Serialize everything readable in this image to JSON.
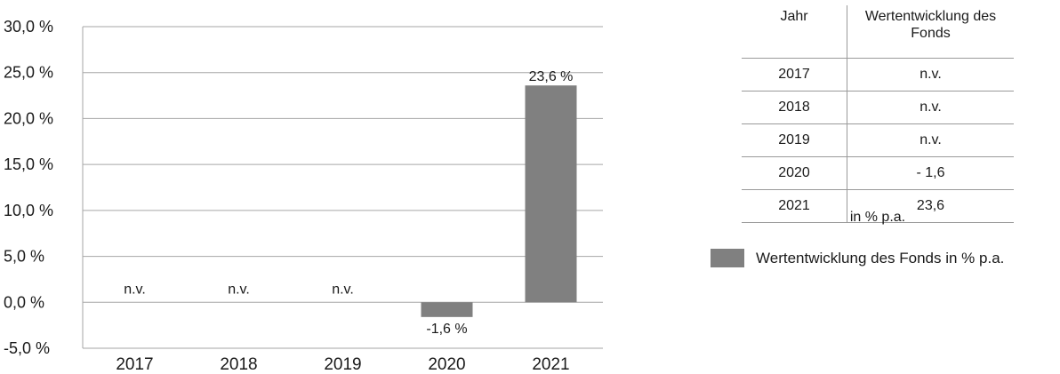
{
  "chart_data": {
    "type": "bar",
    "categories": [
      "2017",
      "2018",
      "2019",
      "2020",
      "2021"
    ],
    "series": [
      {
        "name": "Wertentwicklung des Fonds in % p.a.",
        "values": [
          null,
          null,
          null,
          -1.6,
          23.6
        ],
        "labels": [
          "n.v.",
          "n.v.",
          "n.v.",
          "-1,6 %",
          "23,6 %"
        ]
      }
    ],
    "ylim": [
      -5,
      30
    ],
    "yticks": [
      "-5,0 %",
      "0,0 %",
      "5,0 %",
      "10,0 %",
      "15,0 %",
      "20,0 %",
      "25,0 %",
      "30,0 %"
    ],
    "grid": true,
    "bar_color": "#808080",
    "xlabel": "",
    "ylabel": ""
  },
  "table": {
    "headers": [
      "Jahr",
      "Wertentwicklung des Fonds"
    ],
    "rows": [
      [
        "2017",
        "n.v."
      ],
      [
        "2018",
        "n.v."
      ],
      [
        "2019",
        "n.v."
      ],
      [
        "2020",
        "- 1,6"
      ],
      [
        "2021",
        "23,6"
      ]
    ],
    "note": "in % p.a."
  },
  "legend": {
    "label": "Wertentwicklung des Fonds in % p.a.",
    "color": "#808080"
  }
}
